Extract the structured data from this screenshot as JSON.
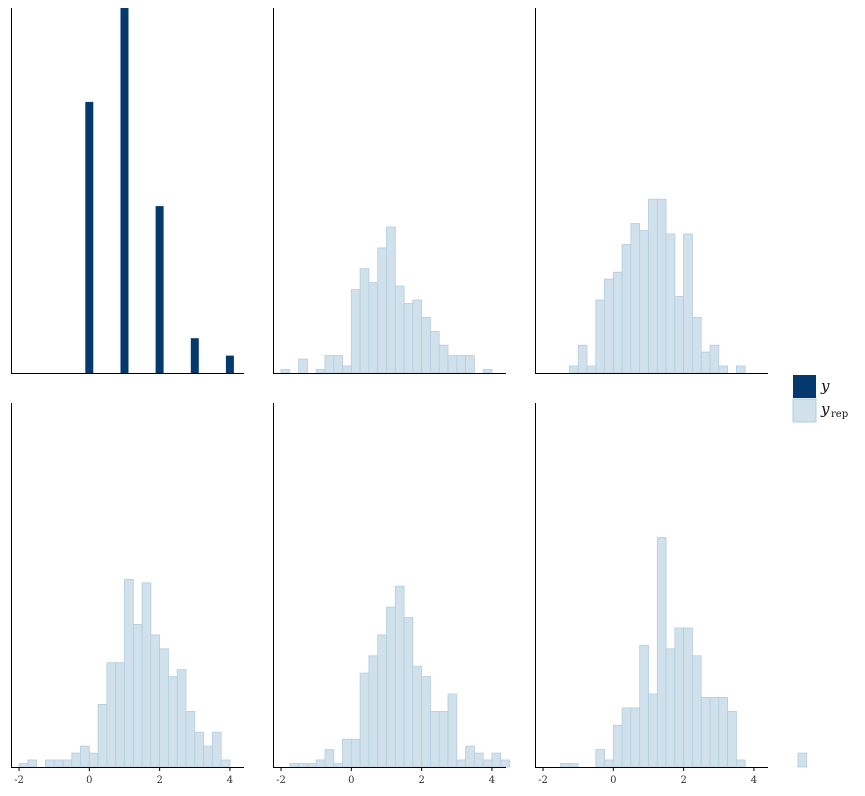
{
  "colors": {
    "y_fill": "#03396c",
    "yrep_fill": "#d1e1ec",
    "yrep_stroke": "#b3cde0",
    "axis": "#000000"
  },
  "legend": {
    "items": [
      {
        "main": "y",
        "sub": "",
        "color_key": "y_fill"
      },
      {
        "main": "y",
        "sub": "rep",
        "color_key": "yrep_fill"
      }
    ]
  },
  "chart_data": {
    "type": "bar",
    "layout": "grid-2x3",
    "shared_x_axis": true,
    "xlim": [
      -2.2,
      4.4
    ],
    "x_ticks": [
      -2,
      0,
      2,
      4
    ],
    "x_tick_labels": [
      "-2",
      "0",
      "2",
      "4"
    ],
    "bin_width": 0.25,
    "panels": [
      {
        "series": "y",
        "style": "bar-discrete",
        "bars": [
          {
            "x": 0,
            "count": 78
          },
          {
            "x": 1,
            "count": 105
          },
          {
            "x": 2,
            "count": 48
          },
          {
            "x": 3,
            "count": 10
          },
          {
            "x": 4,
            "count": 5
          }
        ]
      },
      {
        "series": "yrep",
        "bin_start": -2,
        "counts": [
          1,
          0,
          4,
          0,
          1,
          5,
          5,
          2,
          24,
          30,
          26,
          36,
          42,
          25,
          20,
          21,
          16,
          12,
          8,
          5,
          5,
          5,
          0,
          1
        ]
      },
      {
        "series": "yrep",
        "bin_start": -1.25,
        "counts": [
          2,
          8,
          2,
          21,
          27,
          29,
          37,
          43,
          41,
          50,
          50,
          40,
          22,
          40,
          16,
          6,
          8,
          2,
          0,
          2
        ]
      },
      {
        "series": "yrep",
        "bin_start": -2,
        "counts": [
          1,
          2,
          0,
          2,
          2,
          2,
          4,
          6,
          4,
          18,
          30,
          30,
          54,
          41,
          53,
          38,
          34,
          26,
          28,
          16,
          10,
          6,
          10,
          2,
          0,
          0,
          0
        ]
      },
      {
        "series": "yrep",
        "bin_start": -1.75,
        "counts": [
          1,
          1,
          1,
          2,
          5,
          1,
          8,
          8,
          27,
          32,
          38,
          46,
          52,
          43,
          29,
          26,
          16,
          16,
          21,
          2,
          6,
          4,
          2,
          4,
          2
        ]
      },
      {
        "series": "yrep",
        "bin_start": -1.5,
        "counts": [
          1,
          1,
          0,
          0,
          5,
          2,
          12,
          17,
          17,
          35,
          21,
          66,
          34,
          40,
          40,
          32,
          20,
          20,
          20,
          16,
          2,
          0,
          0,
          0,
          0,
          0,
          0,
          4
        ]
      }
    ]
  }
}
